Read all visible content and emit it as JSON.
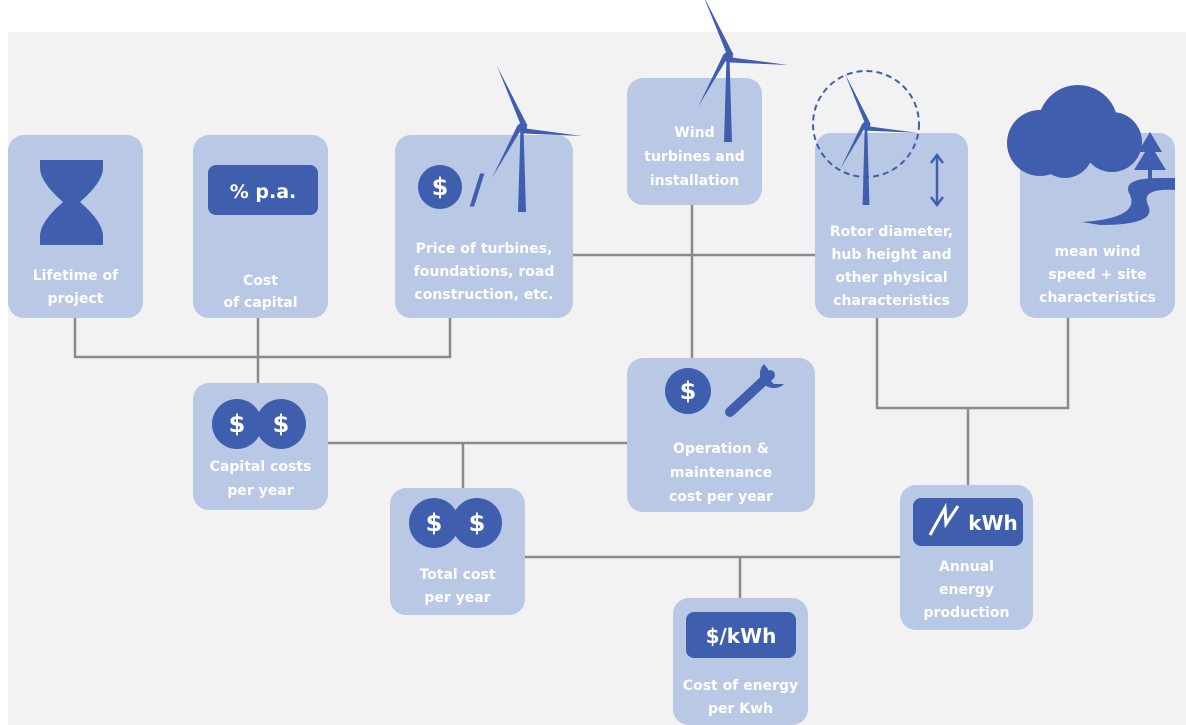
{
  "nodes": [
    {
      "label": [
        "Lifetime of",
        "project"
      ]
    },
    {
      "label": [
        "Cost",
        "of capital"
      ],
      "icon": [
        "% p.a."
      ]
    },
    {
      "label": [
        "Price of turbines,",
        "foundations, road",
        "construction, etc."
      ],
      "icon": [
        "$",
        "/"
      ]
    },
    {
      "label": [
        "Wind",
        "turbines and",
        "installation"
      ]
    },
    {
      "label": [
        "Rotor diameter,",
        "hub height and",
        "other physical",
        "characteristics"
      ]
    },
    {
      "label": [
        "mean wind",
        "speed + site",
        "characteristics"
      ]
    },
    {
      "label": [
        "Capital costs",
        "per year"
      ],
      "icon": [
        "$",
        "$"
      ]
    },
    {
      "label": [
        "Operation &",
        "maintenance",
        "cost per year"
      ],
      "icon": [
        "$"
      ]
    },
    {
      "label": [
        "Total cost",
        "per year"
      ],
      "icon": [
        "$",
        "$"
      ]
    },
    {
      "label": [
        "Annual",
        "energy",
        "production"
      ],
      "icon": [
        "kWh"
      ]
    },
    {
      "label": [
        "Cost of energy",
        "per Kwh"
      ],
      "icon": [
        "$/kWh"
      ]
    }
  ]
}
